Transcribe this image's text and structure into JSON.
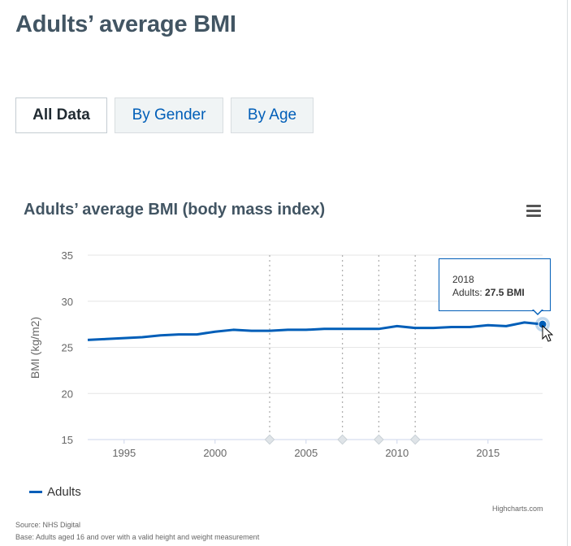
{
  "page": {
    "title": "Adults’ average BMI"
  },
  "tabs": [
    {
      "label": "All Data",
      "active": true
    },
    {
      "label": "By Gender",
      "active": false
    },
    {
      "label": "By Age",
      "active": false
    }
  ],
  "chart_data": {
    "type": "line",
    "title": "Adults’ average BMI (body mass index)",
    "xlabel": "",
    "ylabel": "BMI (kg/m2)",
    "xlim": [
      1993,
      2018
    ],
    "ylim": [
      15,
      35
    ],
    "x_ticks": [
      1995,
      2000,
      2005,
      2010,
      2015
    ],
    "y_ticks": [
      15,
      20,
      25,
      30,
      35
    ],
    "plot_bands_markers": [
      2003,
      2007,
      2009,
      2011
    ],
    "series": [
      {
        "name": "Adults",
        "color": "#005eb8",
        "x": [
          1993,
          1994,
          1995,
          1996,
          1997,
          1998,
          1999,
          2000,
          2001,
          2002,
          2003,
          2004,
          2005,
          2006,
          2007,
          2008,
          2009,
          2010,
          2011,
          2012,
          2013,
          2014,
          2015,
          2016,
          2017,
          2018
        ],
        "values": [
          25.8,
          25.9,
          26.0,
          26.1,
          26.3,
          26.4,
          26.4,
          26.7,
          26.9,
          26.8,
          26.8,
          26.9,
          26.9,
          27.0,
          27.0,
          27.0,
          27.0,
          27.3,
          27.1,
          27.1,
          27.2,
          27.2,
          27.4,
          27.3,
          27.7,
          27.5
        ]
      }
    ],
    "legend": "bottom-left",
    "tooltip": {
      "year": "2018",
      "series_label": "Adults:",
      "value_text": "27.5 BMI"
    }
  },
  "footer": {
    "credits": "Highcharts.com",
    "source": "Source: NHS Digital",
    "base": "Base: Adults aged 16 and over with a valid height and weight measurement"
  },
  "colors": {
    "brand": "#005eb8",
    "title": "#425563",
    "grid": "#e6e6e6"
  }
}
